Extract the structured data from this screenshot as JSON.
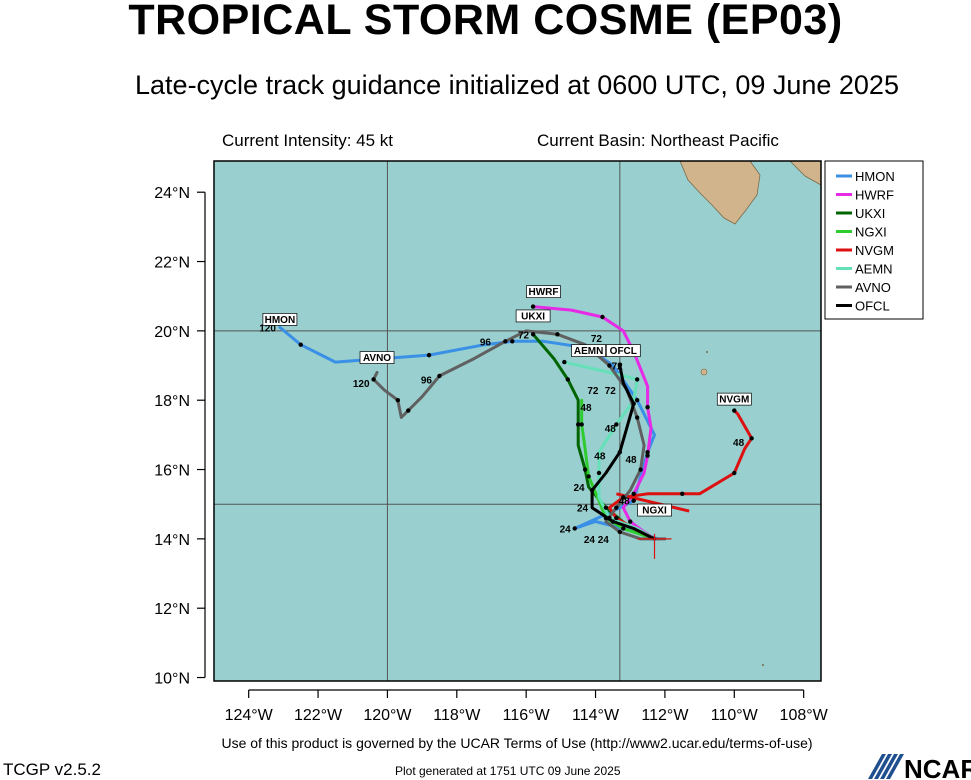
{
  "header": {
    "title": "TROPICAL STORM COSME (EP03)",
    "subtitle": "Late-cycle track guidance initialized at 0600 UTC, 09 June 2025",
    "current_intensity": "Current Intensity: 45 kt",
    "current_basin": "Current Basin: Northeast Pacific"
  },
  "footer": {
    "terms": "Use of this product is governed by the UCAR Terms of Use (http://www2.ucar.edu/terms-of-use)",
    "version": "TCGP v2.5.2",
    "generated": "Plot generated at 1751 UTC   09 June 2025",
    "logo_text": "NCAR"
  },
  "colors": {
    "ocean": "#99cfcf",
    "land": "#d2b48c",
    "grid": "#555555"
  },
  "chart_data": {
    "type": "line",
    "x_axis": {
      "range": [
        -125,
        -107.5
      ],
      "ticks": [
        -124,
        -122,
        -120,
        -118,
        -116,
        -114,
        -112,
        -110,
        -108
      ],
      "tick_labels": [
        "124°W",
        "122°W",
        "120°W",
        "118°W",
        "116°W",
        "114°W",
        "112°W",
        "110°W",
        "108°W"
      ]
    },
    "y_axis": {
      "range": [
        9.9,
        24.9
      ],
      "ticks": [
        10,
        12,
        14,
        16,
        18,
        20,
        22,
        24
      ],
      "tick_labels": [
        "10°N",
        "12°N",
        "14°N",
        "16°N",
        "18°N",
        "20°N",
        "22°N",
        "24°N"
      ]
    },
    "grid_lines": {
      "lon": [
        -120,
        -113.3
      ],
      "lat": [
        20,
        15
      ]
    },
    "legend_position": "top-right",
    "current_position": {
      "lon": -112.3,
      "lat": 14.0
    },
    "series": [
      {
        "name": "HMON",
        "color": "#3a8fe6",
        "points": [
          [
            -112.2,
            14.0
          ],
          [
            -112.5,
            14.1
          ],
          [
            -113.2,
            14.3
          ],
          [
            -114.0,
            14.5
          ],
          [
            -114.6,
            14.3
          ],
          [
            -113.5,
            14.8
          ],
          [
            -112.9,
            15.1
          ],
          [
            -112.7,
            15.8
          ],
          [
            -112.5,
            16.5
          ],
          [
            -112.3,
            17.0
          ],
          [
            -112.8,
            18.0
          ],
          [
            -113.5,
            19.0
          ],
          [
            -114.2,
            19.5
          ],
          [
            -115.5,
            19.7
          ],
          [
            -116.4,
            19.7
          ],
          [
            -117.2,
            19.6
          ],
          [
            -118.8,
            19.3
          ],
          [
            -121.5,
            19.1
          ],
          [
            -122.5,
            19.6
          ],
          [
            -123.1,
            20.1
          ]
        ],
        "hour_labels": [
          {
            "lon": -114.6,
            "lat": 14.3,
            "text": "24"
          },
          {
            "lon": -112.9,
            "lat": 15.1,
            "text": "48"
          },
          {
            "lon": -113.8,
            "lat": 18.3,
            "text": "72"
          },
          {
            "lon": -116.9,
            "lat": 19.7,
            "text": "96"
          },
          {
            "lon": -123.1,
            "lat": 20.1,
            "text": "120"
          }
        ],
        "label": {
          "lon": -123.1,
          "lat": 20.1,
          "text": "HMON"
        }
      },
      {
        "name": "HWRF",
        "color": "#e62ae6",
        "points": [
          [
            -112.3,
            14.0
          ],
          [
            -112.6,
            14.2
          ],
          [
            -113.0,
            14.5
          ],
          [
            -113.2,
            14.9
          ],
          [
            -112.9,
            15.3
          ],
          [
            -112.6,
            15.9
          ],
          [
            -112.5,
            16.4
          ],
          [
            -112.4,
            17.2
          ],
          [
            -112.5,
            17.8
          ],
          [
            -112.5,
            18.4
          ],
          [
            -112.9,
            19.4
          ],
          [
            -113.2,
            20.0
          ],
          [
            -113.8,
            20.4
          ],
          [
            -114.7,
            20.6
          ],
          [
            -115.8,
            20.7
          ]
        ],
        "hour_labels": [
          {
            "lon": -113.5,
            "lat": 14.0,
            "text": "24"
          },
          {
            "lon": -112.7,
            "lat": 16.3,
            "text": "48"
          },
          {
            "lon": -113.7,
            "lat": 19.8,
            "text": "72"
          }
        ],
        "label": {
          "lon": -115.5,
          "lat": 20.9,
          "text": "HWRF"
        }
      },
      {
        "name": "UKXI",
        "color": "#006400",
        "points": [
          [
            -112.3,
            14.0
          ],
          [
            -113.1,
            14.4
          ],
          [
            -113.7,
            14.9
          ],
          [
            -114.2,
            15.5
          ],
          [
            -114.3,
            16.0
          ],
          [
            -114.5,
            16.7
          ],
          [
            -114.5,
            17.3
          ],
          [
            -114.5,
            18.0
          ],
          [
            -114.8,
            18.6
          ],
          [
            -115.2,
            19.2
          ],
          [
            -115.8,
            19.9
          ]
        ],
        "hour_labels": [
          {
            "lon": -114.2,
            "lat": 15.5,
            "text": "24"
          },
          {
            "lon": -114.0,
            "lat": 17.8,
            "text": "48"
          },
          {
            "lon": -115.8,
            "lat": 19.9,
            "text": "72"
          }
        ],
        "label": {
          "lon": -115.8,
          "lat": 20.2,
          "text": "UKXI"
        }
      },
      {
        "name": "NGXI",
        "color": "#2ecc2e",
        "points": [
          [
            -112.3,
            14.0
          ],
          [
            -113.2,
            14.3
          ],
          [
            -113.7,
            14.6
          ],
          [
            -113.9,
            15.1
          ],
          [
            -114.2,
            15.8
          ],
          [
            -114.3,
            16.6
          ],
          [
            -114.4,
            17.3
          ],
          [
            -114.4,
            18.0
          ]
        ],
        "hour_labels": [],
        "label": {
          "lon": -112.3,
          "lat": 14.6,
          "text": "NGXI"
        }
      },
      {
        "name": "NVGM",
        "color": "#dd1111",
        "points": [
          [
            -112.3,
            14.0
          ],
          [
            -112.9,
            14.3
          ],
          [
            -113.4,
            14.6
          ],
          [
            -113.6,
            14.9
          ],
          [
            -113.2,
            15.2
          ],
          [
            -112.5,
            15.3
          ],
          [
            -111.5,
            15.3
          ],
          [
            -111.0,
            15.3
          ],
          [
            -110.0,
            15.9
          ],
          [
            -109.7,
            16.6
          ],
          [
            -109.5,
            16.9
          ],
          [
            -109.9,
            17.6
          ],
          [
            -110.0,
            17.7
          ]
        ],
        "extra_segment": [
          [
            -113.4,
            15.3
          ],
          [
            -111.3,
            14.8
          ]
        ],
        "hour_labels": [
          {
            "lon": -109.6,
            "lat": 16.8,
            "text": "48"
          }
        ],
        "label": {
          "lon": -110.0,
          "lat": 17.8,
          "text": "NVGM"
        }
      },
      {
        "name": "AEMN",
        "color": "#66e0b8",
        "points": [
          [
            -112.3,
            14.0
          ],
          [
            -112.8,
            14.3
          ],
          [
            -113.6,
            14.6
          ],
          [
            -113.9,
            15.2
          ],
          [
            -113.9,
            15.9
          ],
          [
            -113.9,
            16.5
          ],
          [
            -113.4,
            17.3
          ],
          [
            -112.9,
            18.0
          ],
          [
            -112.8,
            18.6
          ],
          [
            -113.6,
            18.8
          ],
          [
            -114.9,
            19.1
          ]
        ],
        "hour_labels": [],
        "label": {
          "lon": -114.2,
          "lat": 19.2,
          "text": "AEMN"
        }
      },
      {
        "name": "AVNO",
        "color": "#606060",
        "points": [
          [
            -112.0,
            14.0
          ],
          [
            -112.7,
            14.0
          ],
          [
            -113.3,
            14.2
          ],
          [
            -113.7,
            14.5
          ],
          [
            -113.4,
            14.9
          ],
          [
            -113.0,
            15.4
          ],
          [
            -112.7,
            16.0
          ],
          [
            -112.6,
            16.7
          ],
          [
            -112.8,
            17.5
          ],
          [
            -113.1,
            18.3
          ],
          [
            -113.6,
            19.0
          ],
          [
            -114.3,
            19.6
          ],
          [
            -115.1,
            19.9
          ],
          [
            -116.0,
            20.0
          ],
          [
            -116.6,
            19.7
          ],
          [
            -117.5,
            19.2
          ],
          [
            -118.5,
            18.7
          ],
          [
            -119.0,
            18.1
          ],
          [
            -119.4,
            17.7
          ],
          [
            -119.6,
            17.5
          ],
          [
            -119.7,
            18.0
          ],
          [
            -120.1,
            18.3
          ],
          [
            -120.4,
            18.6
          ],
          [
            -120.3,
            18.8
          ]
        ],
        "hour_labels": [
          {
            "lon": -113.9,
            "lat": 14.0,
            "text": "24"
          },
          {
            "lon": -113.3,
            "lat": 17.2,
            "text": "48"
          },
          {
            "lon": -113.3,
            "lat": 18.3,
            "text": "72"
          },
          {
            "lon": -118.6,
            "lat": 18.6,
            "text": "96"
          },
          {
            "lon": -120.4,
            "lat": 18.5,
            "text": "120"
          }
        ],
        "label": {
          "lon": -120.3,
          "lat": 19.0,
          "text": "AVNO"
        }
      },
      {
        "name": "OFCL",
        "color": "#000000",
        "points": [
          [
            -112.3,
            14.0
          ],
          [
            -112.9,
            14.3
          ],
          [
            -113.5,
            14.5
          ],
          [
            -114.1,
            14.9
          ],
          [
            -114.1,
            15.4
          ],
          [
            -113.7,
            15.9
          ],
          [
            -113.3,
            16.5
          ],
          [
            -113.1,
            17.2
          ],
          [
            -112.9,
            17.9
          ],
          [
            -113.2,
            18.5
          ],
          [
            -113.3,
            19.0
          ]
        ],
        "hour_labels": [
          {
            "lon": -114.1,
            "lat": 14.9,
            "text": "24"
          },
          {
            "lon": -113.6,
            "lat": 16.4,
            "text": "48"
          },
          {
            "lon": -113.1,
            "lat": 19.0,
            "text": "72"
          }
        ],
        "label": {
          "lon": -113.2,
          "lat": 19.2,
          "text": "OFCL"
        }
      }
    ]
  }
}
